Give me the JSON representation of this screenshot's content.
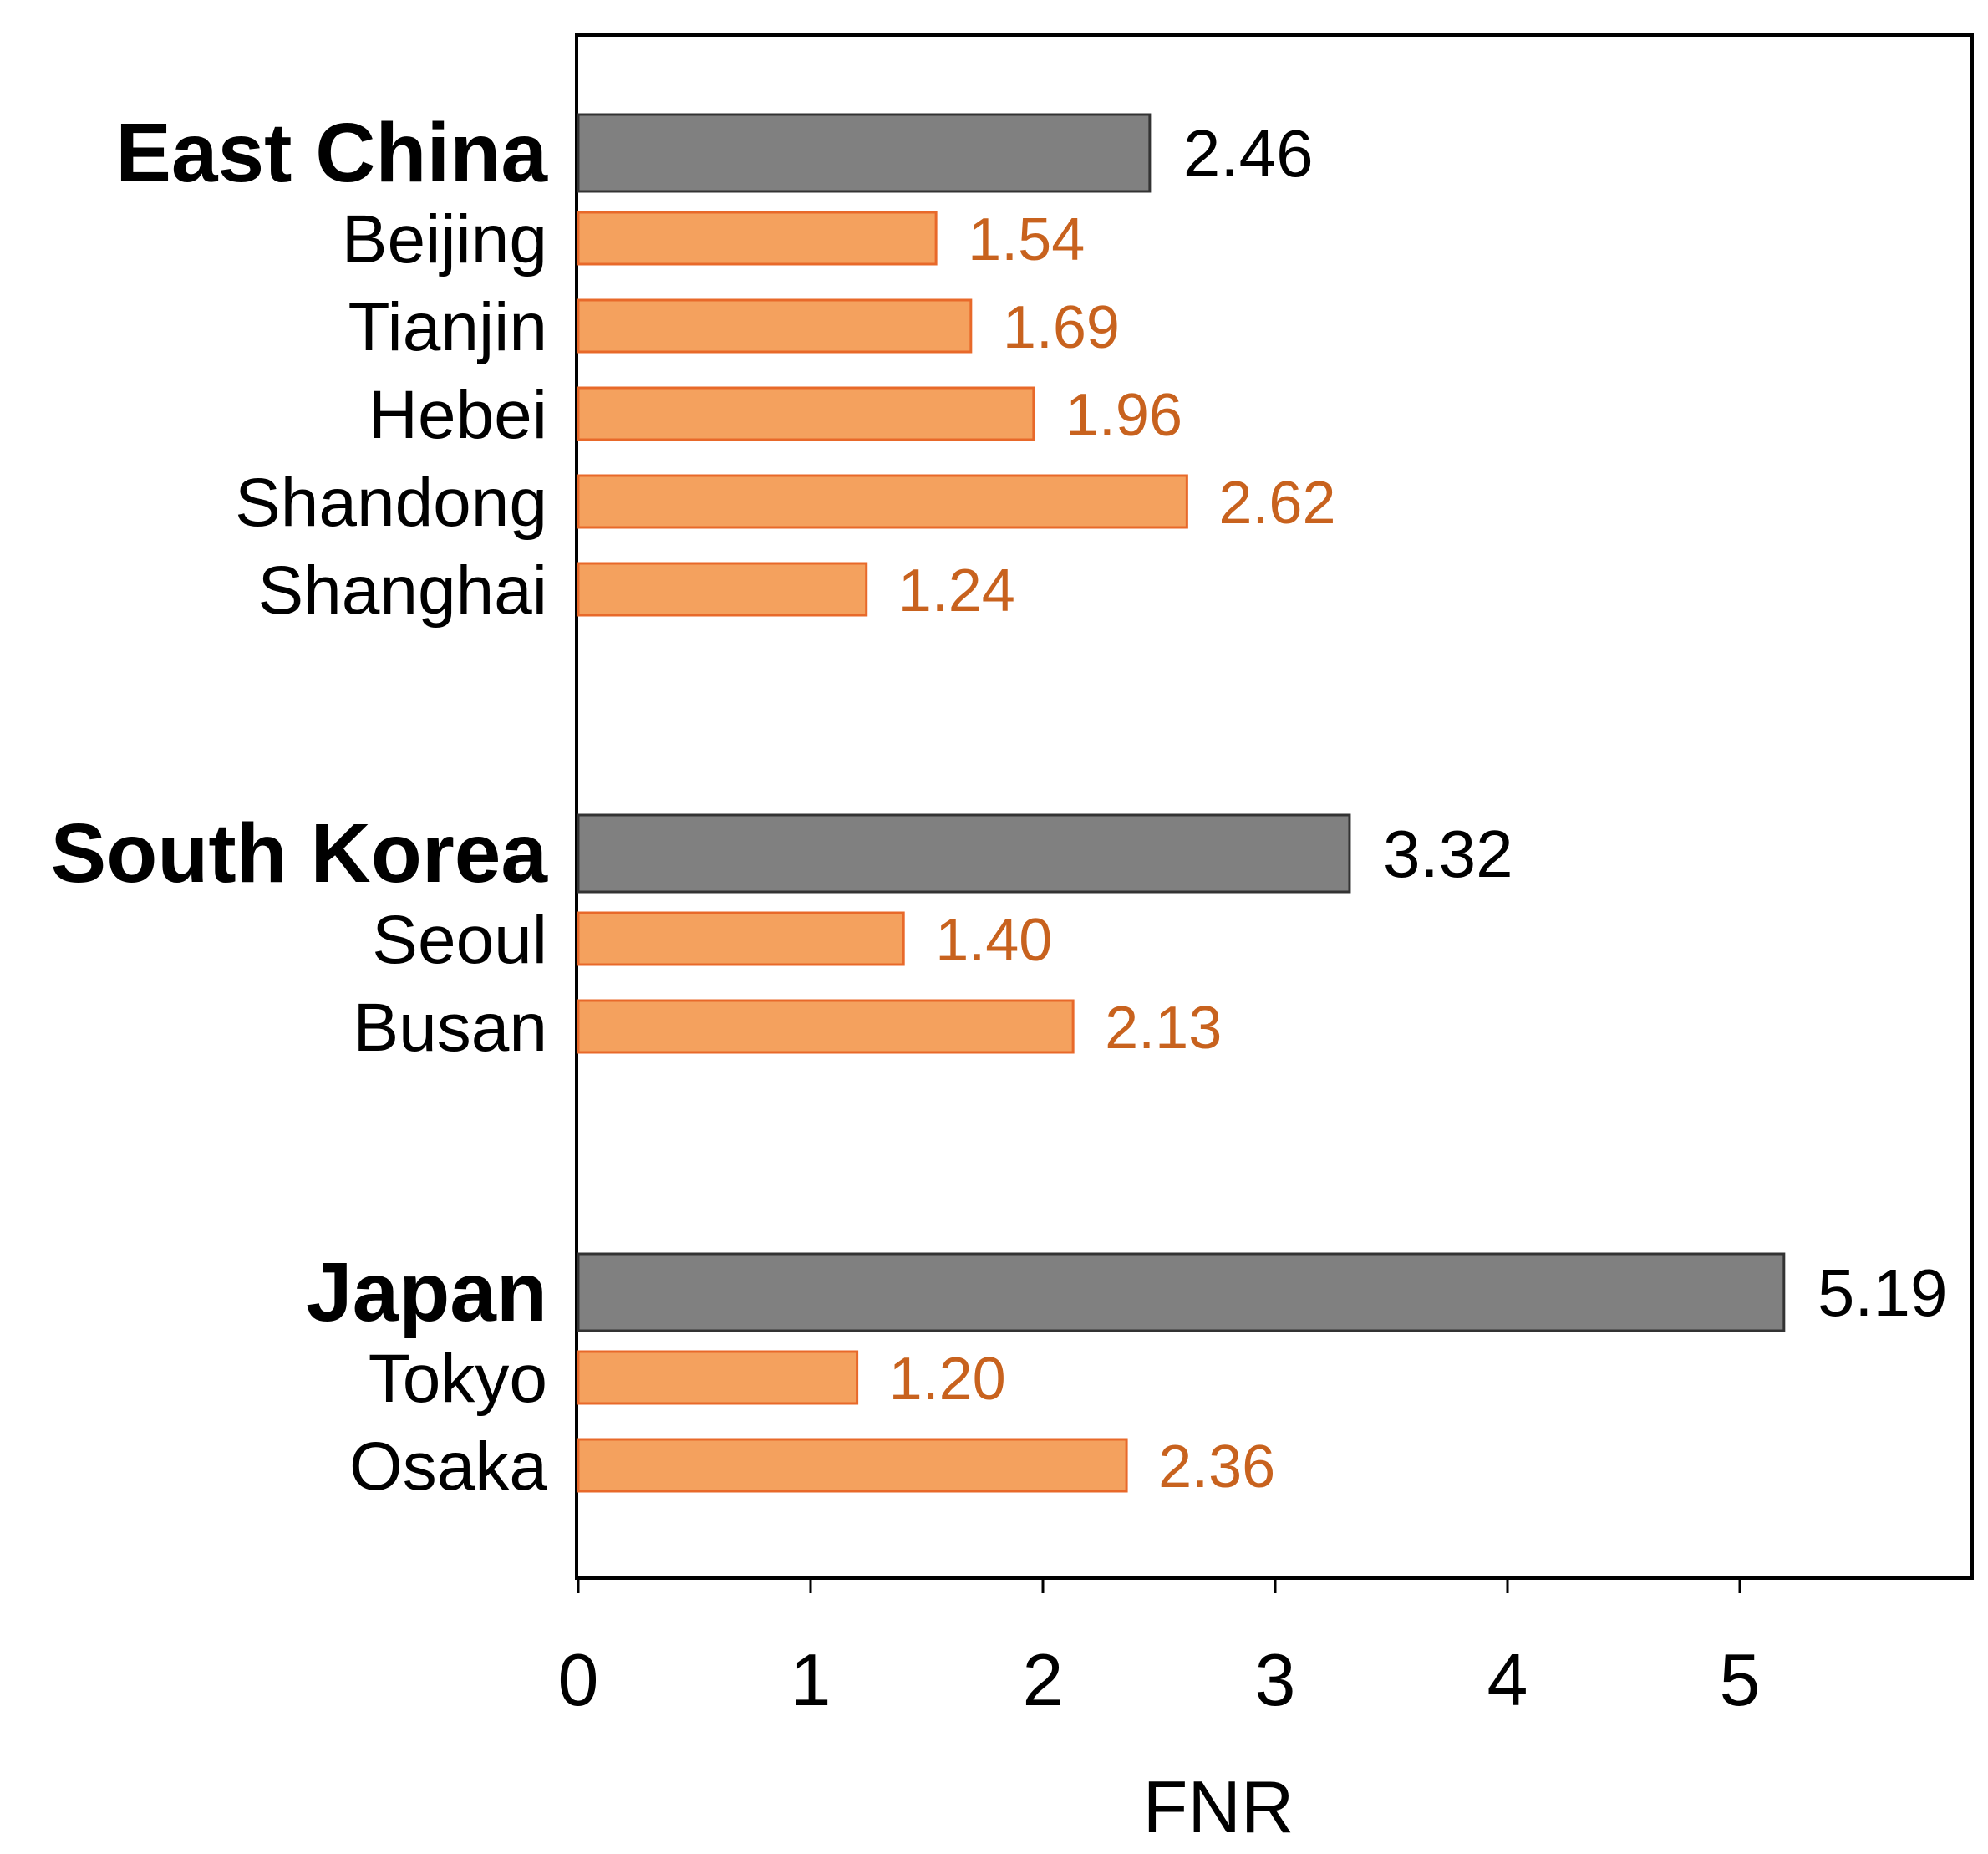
{
  "chart_data": {
    "type": "bar",
    "orientation": "horizontal",
    "xlabel": "FNR",
    "ylabel": "",
    "title": "",
    "xlim": [
      0,
      6
    ],
    "xticks": [
      0,
      1,
      2,
      3,
      4,
      5
    ],
    "grid": false,
    "colors": {
      "region_bar": "#808080",
      "region_text": "#000000",
      "city_bar": "#F4A15E",
      "city_bar_stroke": "#E8692A",
      "city_text": "#C8621E"
    },
    "groups": [
      {
        "region": "East China",
        "value": 2.46,
        "value_label": "2.46",
        "cities": [
          {
            "name": "Beijing",
            "value": 1.54,
            "value_label": "1.54"
          },
          {
            "name": "Tianjin",
            "value": 1.69,
            "value_label": "1.69"
          },
          {
            "name": "Hebei",
            "value": 1.96,
            "value_label": "1.96"
          },
          {
            "name": "Shandong",
            "value": 2.62,
            "value_label": "2.62"
          },
          {
            "name": "Shanghai",
            "value": 1.24,
            "value_label": "1.24"
          }
        ]
      },
      {
        "region": "South Korea",
        "value": 3.32,
        "value_label": "3.32",
        "cities": [
          {
            "name": "Seoul",
            "value": 1.4,
            "value_label": "1.40"
          },
          {
            "name": "Busan",
            "value": 2.13,
            "value_label": "2.13"
          }
        ]
      },
      {
        "region": "Japan",
        "value": 5.19,
        "value_label": "5.19",
        "cities": [
          {
            "name": "Tokyo",
            "value": 1.2,
            "value_label": "1.20"
          },
          {
            "name": "Osaka",
            "value": 2.36,
            "value_label": "2.36"
          }
        ]
      }
    ]
  }
}
